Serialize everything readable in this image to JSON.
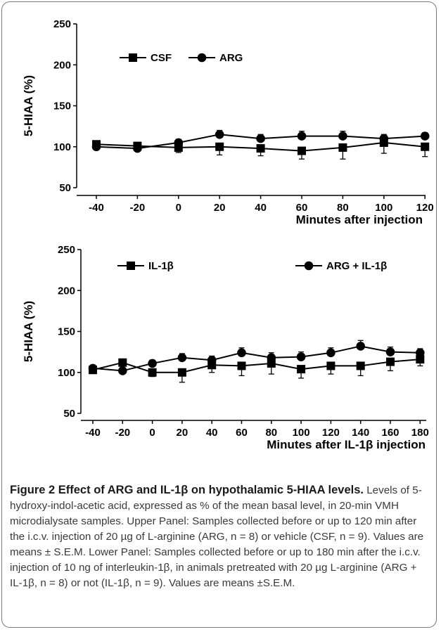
{
  "chart_data": [
    {
      "type": "line",
      "title": "",
      "ylabel": "5-HIAA (%)",
      "xlabel": "Minutes after injection",
      "ylim": [
        50,
        250
      ],
      "yticks": [
        50,
        100,
        150,
        200,
        250
      ],
      "x": [
        -40,
        -20,
        0,
        20,
        40,
        60,
        80,
        100,
        120
      ],
      "xtick_labels": [
        "-40",
        "-20",
        "0",
        "20",
        "40",
        "60",
        "80",
        "100",
        "120"
      ],
      "legend_position": "top-left",
      "series": [
        {
          "name": "CSF",
          "marker": "square",
          "values": [
            103,
            101,
            99,
            100,
            98,
            95,
            99,
            105,
            100
          ],
          "sem": [
            3,
            3,
            6,
            10,
            9,
            10,
            14,
            13,
            12
          ]
        },
        {
          "name": "ARG",
          "marker": "circle",
          "values": [
            100,
            98,
            105,
            115,
            110,
            113,
            113,
            110,
            113
          ],
          "sem": [
            2,
            3,
            4,
            5,
            5,
            6,
            6,
            5,
            4
          ]
        }
      ]
    },
    {
      "type": "line",
      "title": "",
      "ylabel": "5-HIAA (%)",
      "xlabel": "Minutes after IL-1β injection",
      "ylim": [
        50,
        250
      ],
      "yticks": [
        50,
        100,
        150,
        200,
        250
      ],
      "x": [
        -40,
        -20,
        0,
        20,
        40,
        60,
        80,
        100,
        120,
        140,
        160,
        180
      ],
      "xtick_labels": [
        "-40",
        "-20",
        "0",
        "20",
        "40",
        "60",
        "80",
        "100",
        "120",
        "140",
        "160",
        "180"
      ],
      "legend_position": "top",
      "series": [
        {
          "name": "IL-1β",
          "marker": "square",
          "values": [
            103,
            112,
            100,
            100,
            109,
            108,
            111,
            104,
            108,
            108,
            113,
            116
          ],
          "sem": [
            3,
            4,
            5,
            12,
            9,
            12,
            13,
            11,
            10,
            12,
            11,
            8
          ]
        },
        {
          "name": "ARG + IL-1β",
          "marker": "circle",
          "values": [
            105,
            102,
            111,
            118,
            115,
            124,
            118,
            119,
            124,
            132,
            125,
            124
          ],
          "sem": [
            2,
            3,
            4,
            5,
            5,
            6,
            6,
            6,
            6,
            7,
            6,
            5
          ]
        }
      ]
    }
  ],
  "caption": {
    "title": "Figure 2 Effect of ARG and IL-1β on hypothalamic 5-HIAA levels.",
    "body": " Levels of 5-hydroxy-indol-acetic acid, expressed as % of the mean basal level, in 20-min VMH microdialysate samples. Upper Panel: Samples collected before or up to 120 min after the i.c.v. injection of 20 µg of L-arginine (ARG, n = 8) or vehicle (CSF, n = 9). Values are means ± S.E.M. Lower Panel: Samples collected before or up to 180 min after the i.c.v. injection of 10 ng of interleukin-1β, in animals pretreated with 20 µg L-arginine (ARG + IL-1β, n = 8) or not (IL-1β, n = 9). Values are means ±S.E.M."
  },
  "colors": {
    "ink": "#000000",
    "caption_text": "#3a3a3a",
    "frame": "#7a7a7a"
  }
}
